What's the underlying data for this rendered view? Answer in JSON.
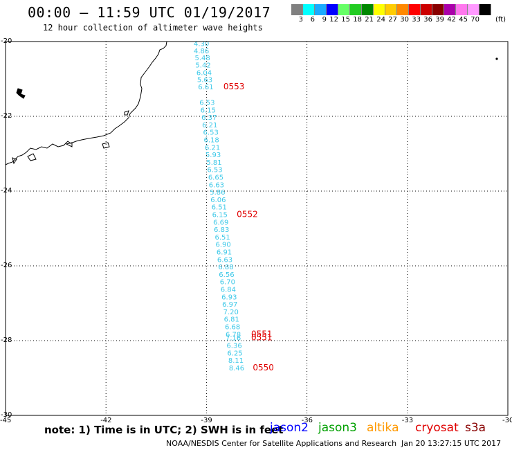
{
  "header": {
    "title": "00:00 – 11:59 UTC 01/19/2017",
    "subtitle": "12 hour collection of altimeter wave heights"
  },
  "colorbar": {
    "unit": "(ft)",
    "levels": [
      "3",
      "6",
      "9",
      "12",
      "15",
      "18",
      "21",
      "24",
      "27",
      "30",
      "33",
      "36",
      "39",
      "42",
      "45",
      "70"
    ],
    "colors": [
      "#808080",
      "#00ffff",
      "#1aaaff",
      "#0000ff",
      "#66ff66",
      "#22cc22",
      "#008800",
      "#ffff00",
      "#ffcc00",
      "#ff8800",
      "#ff0000",
      "#cc0000",
      "#880000",
      "#aa00aa",
      "#ff77ee",
      "#ff99ff",
      "#000000"
    ]
  },
  "map": {
    "lat_range": [
      -30,
      -20
    ],
    "lon_range": [
      -45,
      -30
    ],
    "lat_ticks": [
      "-20",
      "-22",
      "-24",
      "-26",
      "-28",
      "-30"
    ],
    "lon_ticks": [
      "-45",
      "-42",
      "-39",
      "-36",
      "-33",
      "-30"
    ],
    "track_color": "#3cc8e8",
    "pass_color": "#e00000",
    "wave_heights": [
      {
        "lat": -20.05,
        "lon": -39.15,
        "v": "4.30"
      },
      {
        "lat": -20.24,
        "lon": -39.15,
        "v": "4.86"
      },
      {
        "lat": -20.43,
        "lon": -39.12,
        "v": "5.48"
      },
      {
        "lat": -20.62,
        "lon": -39.1,
        "v": "5.42"
      },
      {
        "lat": -20.82,
        "lon": -39.07,
        "v": "6.04"
      },
      {
        "lat": -21.01,
        "lon": -39.05,
        "v": "5.63"
      },
      {
        "lat": -21.2,
        "lon": -39.02,
        "v": "6.61"
      },
      {
        "lat": -21.62,
        "lon": -38.98,
        "v": "6.53"
      },
      {
        "lat": -21.82,
        "lon": -38.95,
        "v": "6.15"
      },
      {
        "lat": -22.02,
        "lon": -38.92,
        "v": "6.37"
      },
      {
        "lat": -22.22,
        "lon": -38.9,
        "v": "6.21"
      },
      {
        "lat": -22.42,
        "lon": -38.87,
        "v": "6.53"
      },
      {
        "lat": -22.62,
        "lon": -38.85,
        "v": "6.18"
      },
      {
        "lat": -22.82,
        "lon": -38.82,
        "v": "6.21"
      },
      {
        "lat": -23.02,
        "lon": -38.8,
        "v": "5.93"
      },
      {
        "lat": -23.22,
        "lon": -38.77,
        "v": "5.81"
      },
      {
        "lat": -23.42,
        "lon": -38.75,
        "v": "6.53"
      },
      {
        "lat": -23.62,
        "lon": -38.72,
        "v": "6.65"
      },
      {
        "lat": -23.82,
        "lon": -38.7,
        "v": "6.63"
      },
      {
        "lat": -24.02,
        "lon": -38.67,
        "v": "5.86"
      },
      {
        "lat": -24.22,
        "lon": -38.65,
        "v": "6.06"
      },
      {
        "lat": -24.42,
        "lon": -38.62,
        "v": "6.51"
      },
      {
        "lat": -24.62,
        "lon": -38.6,
        "v": "6.15"
      },
      {
        "lat": -24.82,
        "lon": -38.57,
        "v": "6.69"
      },
      {
        "lat": -25.02,
        "lon": -38.55,
        "v": "6.83"
      },
      {
        "lat": -25.22,
        "lon": -38.52,
        "v": "6.51"
      },
      {
        "lat": -25.42,
        "lon": -38.5,
        "v": "6.90"
      },
      {
        "lat": -25.62,
        "lon": -38.47,
        "v": "6.91"
      },
      {
        "lat": -25.82,
        "lon": -38.45,
        "v": "6.63"
      },
      {
        "lat": -26.02,
        "lon": -38.42,
        "v": "6.88"
      },
      {
        "lat": -26.22,
        "lon": -38.4,
        "v": "6.56"
      },
      {
        "lat": -26.42,
        "lon": -38.37,
        "v": "6.70"
      },
      {
        "lat": -26.62,
        "lon": -38.35,
        "v": "6.84"
      },
      {
        "lat": -26.82,
        "lon": -38.32,
        "v": "6.93"
      },
      {
        "lat": -27.02,
        "lon": -38.3,
        "v": "6.97"
      },
      {
        "lat": -27.22,
        "lon": -38.27,
        "v": "7.20"
      },
      {
        "lat": -27.42,
        "lon": -38.25,
        "v": "6.81"
      },
      {
        "lat": -27.62,
        "lon": -38.22,
        "v": "6.68"
      },
      {
        "lat": -27.82,
        "lon": -38.2,
        "v": "6.78"
      },
      {
        "lat": -27.92,
        "lon": -38.2,
        "v": "7.16"
      },
      {
        "lat": -28.12,
        "lon": -38.17,
        "v": "6.36"
      },
      {
        "lat": -28.32,
        "lon": -38.15,
        "v": "6.25"
      },
      {
        "lat": -28.52,
        "lon": -38.12,
        "v": "8.11"
      },
      {
        "lat": -28.72,
        "lon": -38.1,
        "v": "8.46"
      }
    ],
    "pass_labels": [
      {
        "lat": -21.2,
        "lon": -38.18,
        "v": "0553"
      },
      {
        "lat": -24.62,
        "lon": -37.78,
        "v": "0552"
      },
      {
        "lat": -27.82,
        "lon": -37.35,
        "v": "0551"
      },
      {
        "lat": -27.92,
        "lon": -37.35,
        "v": "0551"
      },
      {
        "lat": -28.72,
        "lon": -37.3,
        "v": "0550"
      }
    ]
  },
  "footer": {
    "note": "note: 1) Time is in UTC; 2) SWH is in feet",
    "satellites": [
      {
        "name": "jason2",
        "color": "#0000ff"
      },
      {
        "name": "jason3",
        "color": "#00a000"
      },
      {
        "name": "altika",
        "color": "#ff9900"
      },
      {
        "name": "cryosat",
        "color": "#e00000"
      },
      {
        "name": "s3a",
        "color": "#880000"
      }
    ],
    "credit": "NOAA/NESDIS Center for Satellite Applications and Research",
    "date": "Jan 20 13:27:15 UTC 2017"
  }
}
